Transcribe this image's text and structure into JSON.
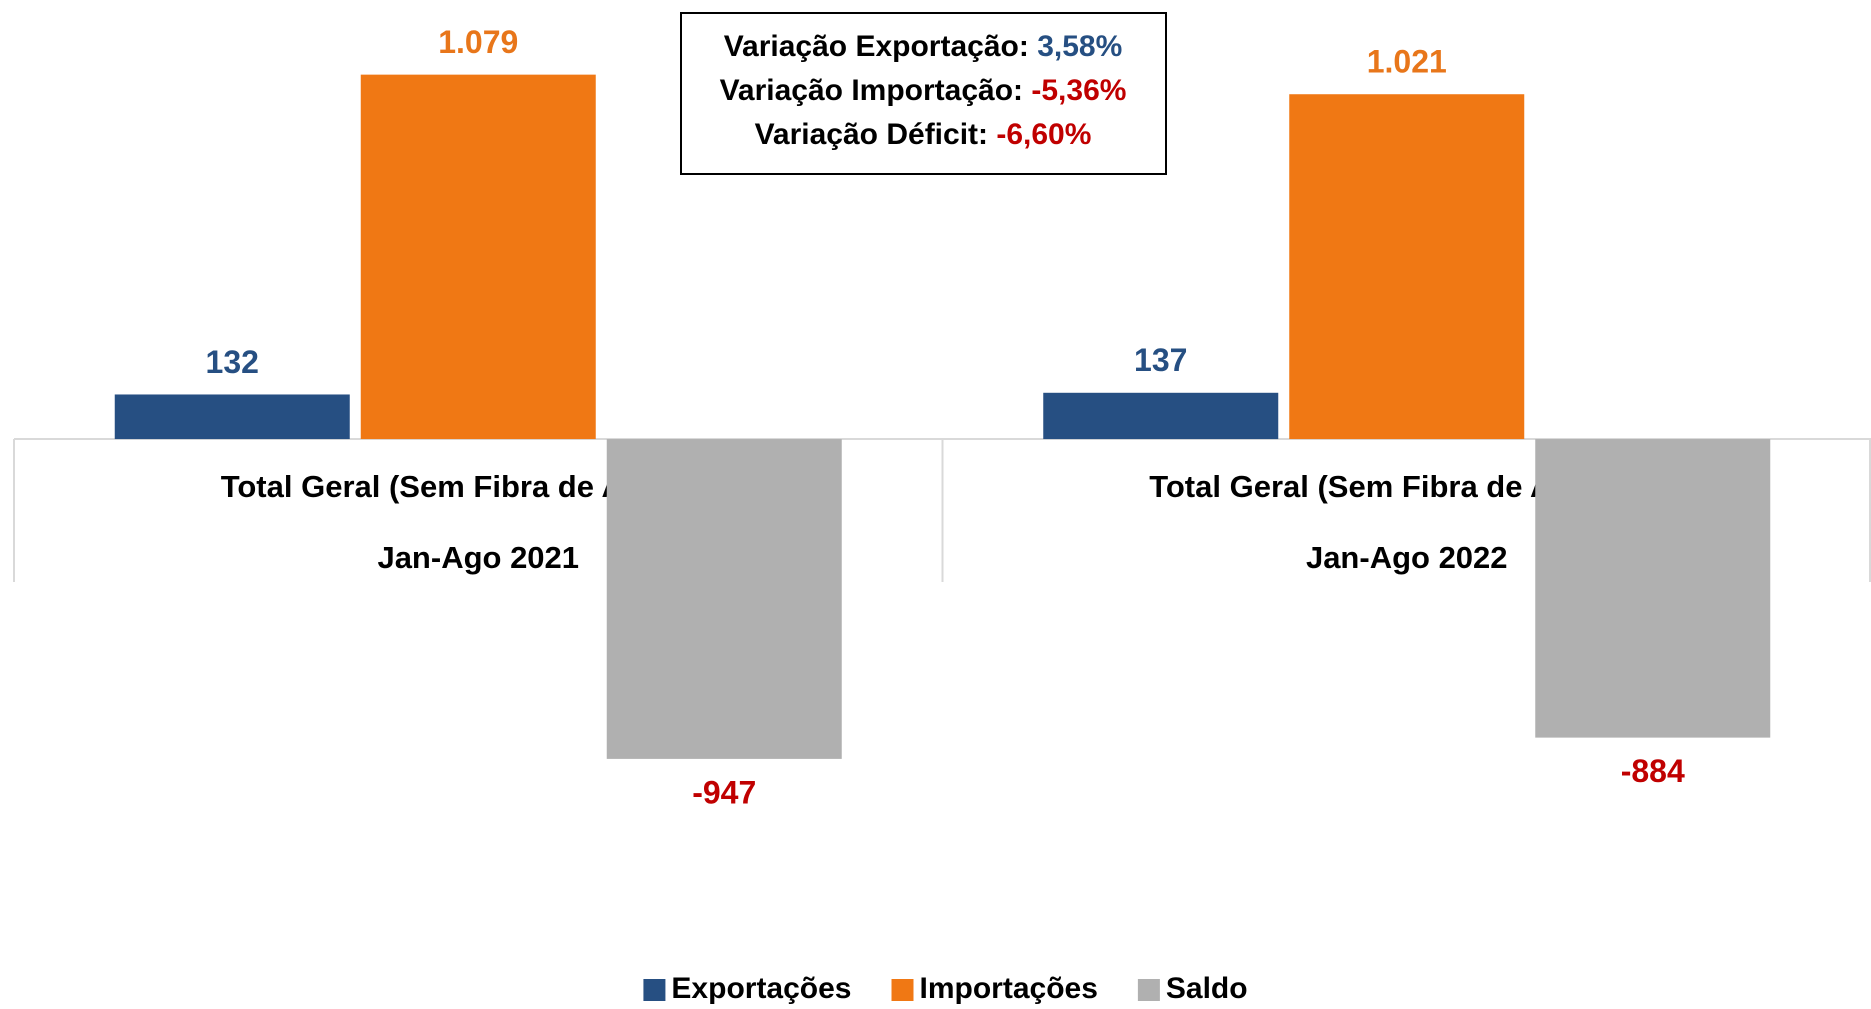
{
  "chart_data": {
    "type": "bar",
    "categories": [
      [
        "Total Geral (Sem Fibra de Algodão)",
        "Jan-Ago 2021"
      ],
      [
        "Total Geral (Sem Fibra de Algodão)",
        "Jan-Ago 2022"
      ]
    ],
    "series": [
      {
        "name": "Exportações",
        "color": "#264f82",
        "label_color": "#264f82",
        "values": [
          132,
          137
        ],
        "value_labels": [
          "132",
          "137"
        ]
      },
      {
        "name": "Importações",
        "color": "#f07814",
        "label_color": "#e8761a",
        "values": [
          1079,
          1021
        ],
        "value_labels": [
          "1.079",
          "1.021"
        ]
      },
      {
        "name": "Saldo",
        "color": "#b0b0b0",
        "label_color": "#c00000",
        "values": [
          -947,
          -884
        ],
        "value_labels": [
          "-947",
          "-884"
        ]
      }
    ],
    "ylim": [
      -1350,
      1300
    ],
    "annotations": [
      {
        "label": "Variação Exportação:",
        "value": 3.58,
        "value_label": "3,58%"
      },
      {
        "label": "Variação Importação:",
        "value": -5.36,
        "value_label": "-5,36%"
      },
      {
        "label": "Variação Déficit:",
        "value": -6.6,
        "value_label": "-6,60%"
      }
    ],
    "positive_color": "#264f82",
    "negative_color": "#c00000",
    "legend": "bottom"
  }
}
